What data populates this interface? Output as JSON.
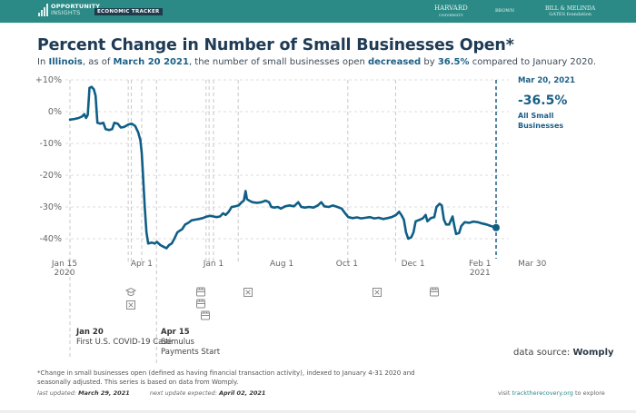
{
  "header": {
    "logo_line1": "OPPORTUNITY",
    "logo_line2": "INSIGHTS",
    "badge": "ECONOMIC TRACKER",
    "partners": [
      "HARVARD",
      "UNIVERSITY",
      "BROWN",
      "BILL & MELINDA",
      "GATES foundation"
    ]
  },
  "title": "Percent Change in Number of Small Businesses Open*",
  "subtitle": {
    "p1": "In ",
    "state": "Illinois",
    "p2": ", as of ",
    "date": "March 20 2021",
    "p3": ", the number of small businesses open ",
    "direction": "decreased",
    "p4": " by ",
    "pct": "36.5%",
    "p5": " compared to January 2020."
  },
  "sidebar": {
    "date": "Mar 20, 2021",
    "value": "-36.5%",
    "label": "All Small Businesses"
  },
  "annotations": [
    {
      "date": "Jan 20",
      "text": "First U.S. COVID-19 Case"
    },
    {
      "date": "Apr 15",
      "text": "Stimulus Payments Start"
    }
  ],
  "event_icons": [
    "school-icon",
    "closed-icon",
    "store-icon",
    "store-icon",
    "store-icon",
    "closed-icon",
    "closed-icon",
    "store-icon"
  ],
  "source_label": "data source: ",
  "source_name": "Womply",
  "footnote": "*Change in small businesses open (defined as having financial transaction activity), indexed to January 4-31 2020 and seasonally adjusted. This series is based on data from Womply.",
  "updated": {
    "last_label": "last updated: ",
    "last_value": "March 29, 2021",
    "next_label": "next update expected: ",
    "next_value": "April 02, 2021"
  },
  "visit": {
    "pre": "visit ",
    "link": "tracktherecovery.org",
    "post": " to explore"
  },
  "colors": {
    "line": "#0f5e86",
    "header": "#2b8a86",
    "title": "#1f3b55"
  },
  "chart_data": {
    "type": "line",
    "title": "Percent Change in Number of Small Businesses Open*",
    "xlabel": "",
    "ylabel": "",
    "ylim": [
      -45,
      10
    ],
    "yticks": [
      "+10%",
      "0%",
      "-10%",
      "-20%",
      "-30%",
      "-40%"
    ],
    "ytick_values": [
      10,
      0,
      -10,
      -20,
      -30,
      -40
    ],
    "xticks": [
      {
        "label": "Jan 15",
        "sub": "2020",
        "t": 0
      },
      {
        "label": "Apr 1",
        "sub": "",
        "t": 0.165
      },
      {
        "label": "Jan 1",
        "sub": "",
        "t": 0.33
      },
      {
        "label": "Aug 1",
        "sub": "",
        "t": 0.487
      },
      {
        "label": "Oct 1",
        "sub": "",
        "t": 0.637
      },
      {
        "label": "Dec 1",
        "sub": "",
        "t": 0.789
      },
      {
        "label": "Feb 1",
        "sub": "2021",
        "t": 0.943
      },
      {
        "label": "Mar 30",
        "sub": "",
        "t": 1.063
      }
    ],
    "grid": true,
    "series": [
      {
        "name": "All Small Businesses",
        "points": [
          [
            0.0,
            -2.5
          ],
          [
            0.01,
            -2.3
          ],
          [
            0.02,
            -2.0
          ],
          [
            0.028,
            -1.5
          ],
          [
            0.033,
            -0.8
          ],
          [
            0.037,
            -2.0
          ],
          [
            0.041,
            -1.0
          ],
          [
            0.045,
            7.5
          ],
          [
            0.05,
            7.8
          ],
          [
            0.055,
            7.0
          ],
          [
            0.059,
            5.0
          ],
          [
            0.063,
            -3.5
          ],
          [
            0.07,
            -3.8
          ],
          [
            0.077,
            -3.5
          ],
          [
            0.082,
            -5.5
          ],
          [
            0.09,
            -5.8
          ],
          [
            0.097,
            -5.5
          ],
          [
            0.102,
            -3.5
          ],
          [
            0.11,
            -3.8
          ],
          [
            0.117,
            -5.0
          ],
          [
            0.125,
            -4.8
          ],
          [
            0.135,
            -4.0
          ],
          [
            0.142,
            -3.8
          ],
          [
            0.15,
            -4.5
          ],
          [
            0.157,
            -6.5
          ],
          [
            0.162,
            -9.0
          ],
          [
            0.165,
            -13.0
          ],
          [
            0.168,
            -20.0
          ],
          [
            0.172,
            -30.0
          ],
          [
            0.176,
            -38.0
          ],
          [
            0.18,
            -41.5
          ],
          [
            0.188,
            -41.2
          ],
          [
            0.195,
            -41.5
          ],
          [
            0.2,
            -41.0
          ],
          [
            0.208,
            -42.0
          ],
          [
            0.215,
            -42.5
          ],
          [
            0.222,
            -43.0
          ],
          [
            0.228,
            -42.0
          ],
          [
            0.234,
            -41.5
          ],
          [
            0.24,
            -40.0
          ],
          [
            0.247,
            -38.0
          ],
          [
            0.252,
            -37.5
          ],
          [
            0.258,
            -37.0
          ],
          [
            0.265,
            -35.5
          ],
          [
            0.272,
            -35.0
          ],
          [
            0.28,
            -34.2
          ],
          [
            0.288,
            -34.0
          ],
          [
            0.296,
            -33.8
          ],
          [
            0.305,
            -33.5
          ],
          [
            0.315,
            -33.0
          ],
          [
            0.323,
            -32.8
          ],
          [
            0.33,
            -33.0
          ],
          [
            0.337,
            -33.2
          ],
          [
            0.345,
            -33.0
          ],
          [
            0.352,
            -32.0
          ],
          [
            0.358,
            -32.5
          ],
          [
            0.365,
            -31.5
          ],
          [
            0.372,
            -30.0
          ],
          [
            0.38,
            -29.8
          ],
          [
            0.388,
            -29.5
          ],
          [
            0.395,
            -28.5
          ],
          [
            0.4,
            -28.0
          ],
          [
            0.404,
            -25.0
          ],
          [
            0.407,
            -27.5
          ],
          [
            0.412,
            -28.0
          ],
          [
            0.42,
            -28.5
          ],
          [
            0.43,
            -28.7
          ],
          [
            0.44,
            -28.5
          ],
          [
            0.45,
            -28.0
          ],
          [
            0.458,
            -28.5
          ],
          [
            0.463,
            -30.0
          ],
          [
            0.47,
            -30.2
          ],
          [
            0.478,
            -30.0
          ],
          [
            0.485,
            -30.5
          ],
          [
            0.495,
            -29.8
          ],
          [
            0.505,
            -29.5
          ],
          [
            0.515,
            -29.8
          ],
          [
            0.525,
            -28.5
          ],
          [
            0.532,
            -30.0
          ],
          [
            0.54,
            -30.2
          ],
          [
            0.55,
            -30.0
          ],
          [
            0.56,
            -30.2
          ],
          [
            0.57,
            -29.5
          ],
          [
            0.578,
            -28.5
          ],
          [
            0.585,
            -29.8
          ],
          [
            0.595,
            -30.0
          ],
          [
            0.605,
            -29.5
          ],
          [
            0.615,
            -30.0
          ],
          [
            0.625,
            -30.5
          ],
          [
            0.633,
            -32.0
          ],
          [
            0.64,
            -33.2
          ],
          [
            0.65,
            -33.5
          ],
          [
            0.66,
            -33.3
          ],
          [
            0.67,
            -33.6
          ],
          [
            0.68,
            -33.4
          ],
          [
            0.69,
            -33.2
          ],
          [
            0.7,
            -33.6
          ],
          [
            0.71,
            -33.4
          ],
          [
            0.72,
            -33.8
          ],
          [
            0.73,
            -33.5
          ],
          [
            0.74,
            -33.2
          ],
          [
            0.75,
            -32.5
          ],
          [
            0.757,
            -31.5
          ],
          [
            0.762,
            -32.5
          ],
          [
            0.768,
            -34.0
          ],
          [
            0.773,
            -38.0
          ],
          [
            0.778,
            -40.0
          ],
          [
            0.785,
            -39.5
          ],
          [
            0.79,
            -38.0
          ],
          [
            0.795,
            -34.5
          ],
          [
            0.805,
            -34.0
          ],
          [
            0.812,
            -33.5
          ],
          [
            0.818,
            -32.5
          ],
          [
            0.822,
            -34.5
          ],
          [
            0.83,
            -33.5
          ],
          [
            0.838,
            -33.2
          ],
          [
            0.843,
            -30.0
          ],
          [
            0.85,
            -29.0
          ],
          [
            0.855,
            -29.5
          ],
          [
            0.86,
            -34.0
          ],
          [
            0.865,
            -35.5
          ],
          [
            0.872,
            -35.5
          ],
          [
            0.88,
            -33.0
          ],
          [
            0.884,
            -36.0
          ],
          [
            0.888,
            -38.5
          ],
          [
            0.895,
            -38.2
          ],
          [
            0.9,
            -36.0
          ],
          [
            0.908,
            -34.8
          ],
          [
            0.918,
            -35.0
          ],
          [
            0.928,
            -34.6
          ],
          [
            0.938,
            -34.8
          ],
          [
            0.948,
            -35.2
          ],
          [
            0.958,
            -35.5
          ],
          [
            0.968,
            -36.0
          ],
          [
            0.98,
            -36.5
          ]
        ]
      }
    ],
    "end_point": {
      "date": "Mar 20, 2021",
      "value": -36.5
    },
    "event_lines": [
      0.0,
      0.134,
      0.141,
      0.165,
      0.199,
      0.313,
      0.32,
      0.33,
      0.387,
      0.639,
      0.749
    ]
  }
}
